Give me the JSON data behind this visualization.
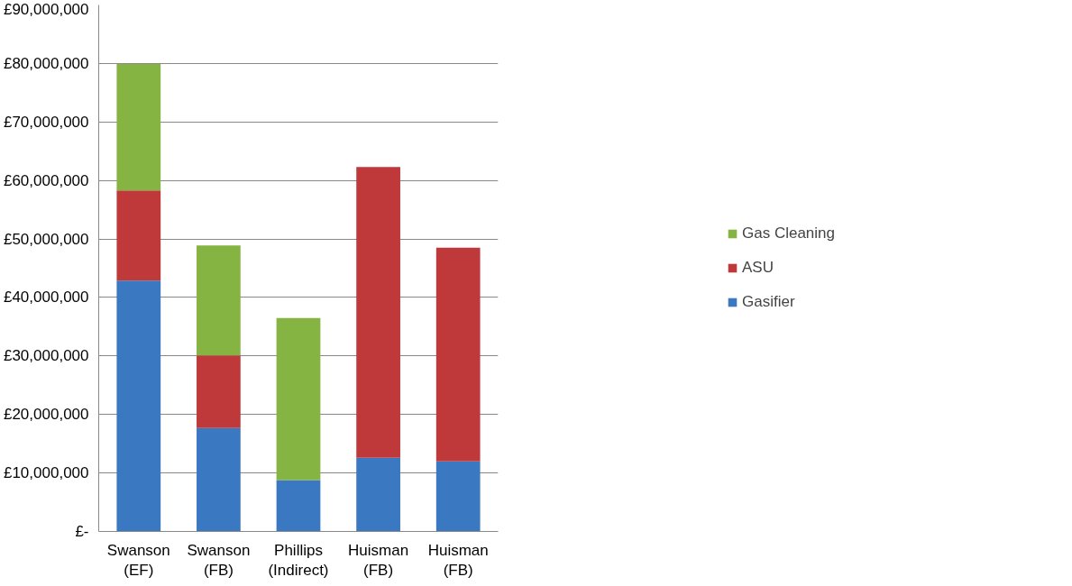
{
  "chart_data": {
    "type": "bar",
    "stacked": true,
    "categories": [
      "Swanson\n(EF)",
      "Swanson\n(FB)",
      "Phillips\n(Indirect)",
      "Huisman\n(FB)",
      "Huisman\n(FB)"
    ],
    "series": [
      {
        "name": "Gasifier",
        "color": "#3a78c2",
        "values": [
          42900000,
          17700000,
          8800000,
          12600000,
          12000000
        ]
      },
      {
        "name": "ASU",
        "color": "#c0393a",
        "values": [
          15400000,
          12400000,
          0,
          49700000,
          36500000
        ]
      },
      {
        "name": "Gas Cleaning",
        "color": "#86b443",
        "values": [
          21600000,
          18800000,
          27700000,
          0,
          0
        ]
      }
    ],
    "ylim": [
      0,
      90000000
    ],
    "yticks": [
      {
        "value": 0,
        "label": "£-"
      },
      {
        "value": 10000000,
        "label": "£10,000,000"
      },
      {
        "value": 20000000,
        "label": "£20,000,000"
      },
      {
        "value": 30000000,
        "label": "£30,000,000"
      },
      {
        "value": 40000000,
        "label": "£40,000,000"
      },
      {
        "value": 50000000,
        "label": "£50,000,000"
      },
      {
        "value": 60000000,
        "label": "£60,000,000"
      },
      {
        "value": 70000000,
        "label": "£70,000,000"
      },
      {
        "value": 80000000,
        "label": "£80,000,000"
      },
      {
        "value": 90000000,
        "label": "£90,000,000"
      }
    ],
    "grid": "y",
    "legend": "right"
  }
}
